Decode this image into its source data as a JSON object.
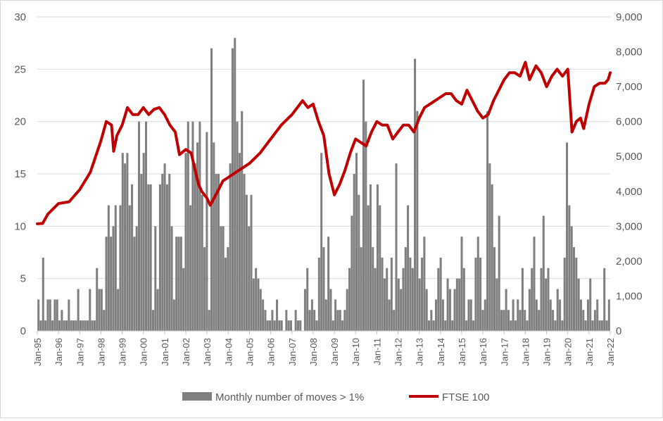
{
  "chart_data": {
    "type": "bar+line",
    "title": "",
    "legend_placement": "bottom",
    "grid": true,
    "y_left": {
      "min": 0,
      "max": 30,
      "ticks": [
        "0",
        "5",
        "10",
        "15",
        "20",
        "25",
        "30"
      ]
    },
    "y_right": {
      "min": 0,
      "max": 9000,
      "ticks": [
        "0",
        "1,000",
        "2,000",
        "3,000",
        "4,000",
        "5,000",
        "6,000",
        "7,000",
        "8,000",
        "9,000"
      ]
    },
    "x_ticks": [
      "Jan-95",
      "Jan-96",
      "Jan-97",
      "Jan-98",
      "Jan-99",
      "Jan-00",
      "Jan-01",
      "Jan-02",
      "Jan-03",
      "Jan-04",
      "Jan-05",
      "Jan-06",
      "Jan-07",
      "Jan-08",
      "Jan-09",
      "Jan-10",
      "Jan-11",
      "Jan-12",
      "Jan-13",
      "Jan-14",
      "Jan-15",
      "Jan-16",
      "Jan-17",
      "Jan-18",
      "Jan-19",
      "Jan-20",
      "Jan-21",
      "Jan-22"
    ],
    "series": [
      {
        "name": "Monthly number of moves > 1%",
        "type": "bar",
        "axis": "left",
        "color": "#7f7f7f",
        "values": [
          3,
          1,
          7,
          1,
          3,
          3,
          1,
          3,
          3,
          1,
          2,
          1,
          1,
          3,
          1,
          1,
          1,
          4,
          1,
          1,
          1,
          1,
          4,
          1,
          1,
          6,
          4,
          4,
          2,
          9,
          12,
          9,
          10,
          12,
          4,
          12,
          17,
          16,
          17,
          12,
          14,
          9,
          10,
          20,
          15,
          17,
          20,
          14,
          14,
          2,
          10,
          4,
          14,
          15,
          16,
          14,
          15,
          10,
          3,
          9,
          9,
          9,
          6,
          17,
          20,
          12,
          20,
          16,
          18,
          20,
          13,
          8,
          19,
          2,
          27,
          18,
          15,
          15,
          10,
          10,
          7,
          8,
          16,
          27,
          28,
          20,
          17,
          21,
          15,
          13,
          10,
          13,
          5,
          6,
          5,
          4,
          3,
          2,
          1,
          1,
          2,
          1,
          3,
          1,
          1,
          0,
          2,
          1,
          1,
          0,
          2,
          1,
          1,
          0,
          4,
          6,
          2,
          3,
          2,
          1,
          7,
          17,
          8,
          3,
          9,
          4,
          1,
          3,
          2,
          2,
          1,
          2,
          4,
          6,
          11,
          15,
          17,
          13,
          8,
          24,
          20,
          12,
          14,
          8,
          6,
          14,
          12,
          7,
          5,
          6,
          3,
          7,
          2,
          16,
          5,
          4,
          6,
          8,
          12,
          7,
          6,
          26,
          21,
          5,
          7,
          9,
          4,
          1,
          2,
          1,
          3,
          6,
          7,
          3,
          1,
          5,
          4,
          1,
          4,
          5,
          5,
          9,
          6,
          1,
          3,
          3,
          1,
          7,
          9,
          7,
          2,
          3,
          21,
          16,
          14,
          8,
          5,
          11,
          2,
          2,
          4,
          2,
          1,
          3,
          1,
          3,
          2,
          6,
          2,
          1,
          4,
          6,
          9,
          3,
          2,
          6,
          11,
          5,
          6,
          3,
          2,
          1,
          4,
          3,
          1,
          7,
          18,
          12,
          10,
          8,
          7,
          5,
          3,
          2,
          1,
          3,
          5,
          1,
          2,
          3,
          1,
          1,
          6,
          1,
          3
        ]
      },
      {
        "name": "FTSE 100",
        "type": "line",
        "axis": "right",
        "color": "#c00000",
        "x": [
          1995.0,
          1995.25,
          1995.5,
          1995.75,
          1996.0,
          1996.5,
          1997.0,
          1997.5,
          1997.75,
          1998.0,
          1998.25,
          1998.5,
          1998.6,
          1998.75,
          1999.0,
          1999.25,
          1999.5,
          1999.75,
          2000.0,
          2000.25,
          2000.5,
          2000.75,
          2001.0,
          2001.25,
          2001.5,
          2001.7,
          2002.0,
          2002.25,
          2002.5,
          2002.6,
          2002.75,
          2003.0,
          2003.15,
          2003.5,
          2003.75,
          2004.0,
          2004.5,
          2005.0,
          2005.5,
          2006.0,
          2006.5,
          2007.0,
          2007.5,
          2007.75,
          2008.0,
          2008.25,
          2008.5,
          2008.75,
          2009.0,
          2009.25,
          2009.5,
          2009.75,
          2010.0,
          2010.25,
          2010.5,
          2010.75,
          2011.0,
          2011.25,
          2011.5,
          2011.75,
          2012.0,
          2012.25,
          2012.5,
          2012.75,
          2013.0,
          2013.25,
          2013.5,
          2013.75,
          2014.0,
          2014.25,
          2014.5,
          2014.75,
          2015.0,
          2015.25,
          2015.5,
          2015.75,
          2016.0,
          2016.25,
          2016.5,
          2016.75,
          2017.0,
          2017.25,
          2017.5,
          2017.75,
          2018.0,
          2018.2,
          2018.5,
          2018.75,
          2019.0,
          2019.25,
          2019.5,
          2019.75,
          2020.0,
          2020.2,
          2020.4,
          2020.6,
          2020.75,
          2021.0,
          2021.25,
          2021.5,
          2021.75,
          2021.9,
          2022.0
        ],
        "values": [
          3070,
          3080,
          3350,
          3500,
          3650,
          3700,
          4050,
          4550,
          5000,
          5450,
          6000,
          5900,
          5150,
          5600,
          5900,
          6400,
          6200,
          6200,
          6400,
          6200,
          6350,
          6400,
          6200,
          5900,
          5700,
          5050,
          5200,
          5100,
          4450,
          4200,
          4000,
          3800,
          3600,
          4000,
          4300,
          4400,
          4600,
          4800,
          5100,
          5500,
          5900,
          6200,
          6600,
          6400,
          6500,
          6000,
          5600,
          4500,
          3900,
          4200,
          4600,
          5100,
          5500,
          5400,
          5300,
          5700,
          6000,
          5900,
          5900,
          5500,
          5700,
          5900,
          5900,
          5700,
          6100,
          6400,
          6500,
          6600,
          6700,
          6800,
          6800,
          6600,
          6500,
          6900,
          6600,
          6300,
          6100,
          6200,
          6600,
          6900,
          7200,
          7400,
          7400,
          7300,
          7700,
          7200,
          7600,
          7400,
          7000,
          7300,
          7500,
          7300,
          7500,
          5700,
          6000,
          6100,
          5800,
          6500,
          7000,
          7100,
          7100,
          7200,
          7400
        ]
      }
    ]
  }
}
